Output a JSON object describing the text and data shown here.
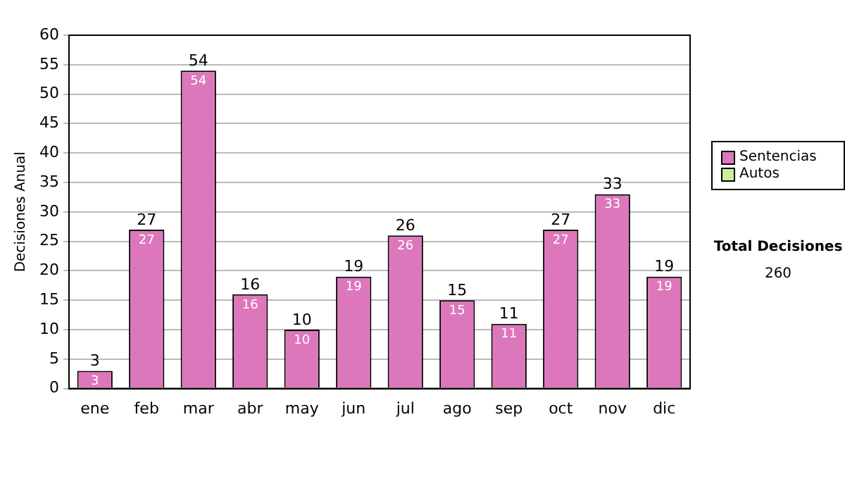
{
  "chart_data": {
    "type": "bar",
    "ylabel": "Decisiones Anual",
    "categories": [
      "ene",
      "feb",
      "mar",
      "abr",
      "may",
      "jun",
      "jul",
      "ago",
      "sep",
      "oct",
      "nov",
      "dic"
    ],
    "series": [
      {
        "name": "Sentencias",
        "color": "#dd77bb",
        "values": [
          3,
          27,
          54,
          16,
          10,
          19,
          26,
          15,
          11,
          27,
          33,
          19
        ],
        "value_labels": [
          "3",
          "27",
          "54",
          "16",
          "10",
          "19",
          "26",
          "15",
          "11",
          "27",
          "33",
          "19"
        ]
      },
      {
        "name": "Autos",
        "color": "#ccee99",
        "values": [
          0,
          0,
          0,
          0,
          0,
          0,
          0,
          0,
          0,
          0,
          0,
          0
        ]
      }
    ],
    "stacked": true,
    "totals": [
      "3",
      "27",
      "54",
      "16",
      "10",
      "19",
      "26",
      "15",
      "11",
      "27",
      "33",
      "19"
    ],
    "ylim": [
      0,
      60
    ],
    "yticks": [
      0,
      5,
      10,
      15,
      20,
      25,
      30,
      35,
      40,
      45,
      50,
      55,
      60
    ],
    "grid": "y",
    "legend": "right",
    "annotations": [
      "Total Decisiones",
      "260"
    ]
  }
}
